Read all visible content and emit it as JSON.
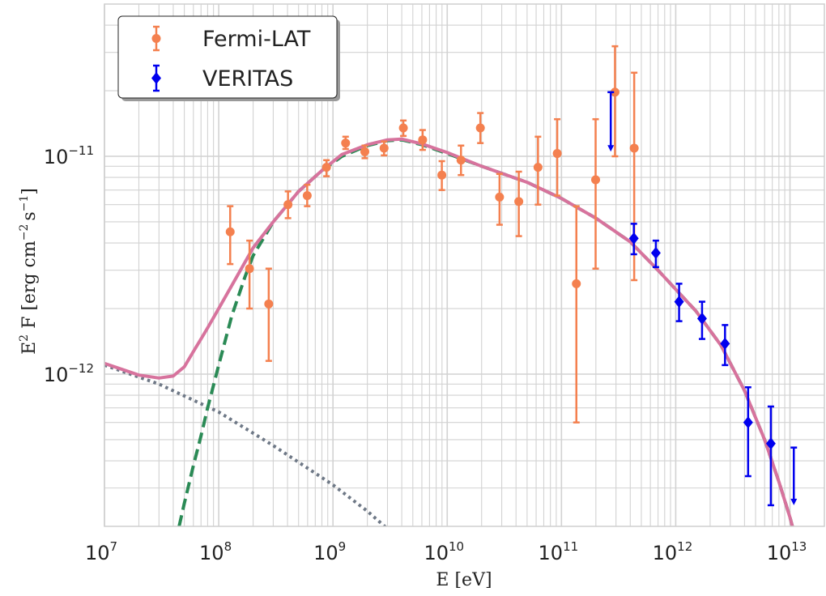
{
  "chart_data": {
    "type": "scatter",
    "title": "",
    "xlabel": "E [eV]",
    "ylabel": {
      "base": "E",
      "sup": "2",
      "rest": " F [erg cm",
      "unit_sup1": "−2",
      "mid": "s",
      "unit_sup2": "−1",
      "close": "]"
    },
    "xscale": "log",
    "yscale": "log",
    "xlim": [
      10000000.0,
      20000000000000.0
    ],
    "ylim": [
      2e-13,
      5e-11
    ],
    "grid": true,
    "legend_position": "top-left",
    "x_ticks": [
      {
        "base": "10",
        "exp": "7",
        "value": 10000000.0
      },
      {
        "base": "10",
        "exp": "8",
        "value": 100000000.0
      },
      {
        "base": "10",
        "exp": "9",
        "value": 1000000000.0
      },
      {
        "base": "10",
        "exp": "10",
        "value": 10000000000.0
      },
      {
        "base": "10",
        "exp": "11",
        "value": 100000000000.0
      },
      {
        "base": "10",
        "exp": "12",
        "value": 1000000000000.0
      },
      {
        "base": "10",
        "exp": "13",
        "value": 10000000000000.0
      }
    ],
    "y_ticks": [
      {
        "base": "10",
        "exp": "−12",
        "value": 1e-12
      },
      {
        "base": "10",
        "exp": "−11",
        "value": 1e-11
      }
    ],
    "series": [
      {
        "name": "Fermi-LAT",
        "color": "#f4804f",
        "marker": "circle",
        "points": [
          {
            "x": 126000000.0,
            "y": 4.5e-12,
            "lo": 3.2e-12,
            "hi": 5.9e-12
          },
          {
            "x": 186000000.0,
            "y": 3.05e-12,
            "lo": 2e-12,
            "hi": 4.1e-12
          },
          {
            "x": 274000000.0,
            "y": 2.1e-12,
            "lo": 1.15e-12,
            "hi": 3.05e-12
          },
          {
            "x": 404000000.0,
            "y": 6e-12,
            "lo": 5.2e-12,
            "hi": 6.9e-12
          },
          {
            "x": 595000000.0,
            "y": 6.6e-12,
            "lo": 5.9e-12,
            "hi": 7.4e-12
          },
          {
            "x": 877000000.0,
            "y": 8.9e-12,
            "lo": 8.1e-12,
            "hi": 9.6e-12
          },
          {
            "x": 1290000000.0,
            "y": 1.15e-11,
            "lo": 1.08e-11,
            "hi": 1.23e-11
          },
          {
            "x": 1900000000.0,
            "y": 1.05e-11,
            "lo": 9.8e-12,
            "hi": 1.12e-11
          },
          {
            "x": 2800000000.0,
            "y": 1.09e-11,
            "lo": 1.01e-11,
            "hi": 1.17e-11
          },
          {
            "x": 4130000000.0,
            "y": 1.35e-11,
            "lo": 1.24e-11,
            "hi": 1.46e-11
          },
          {
            "x": 6090000000.0,
            "y": 1.19e-11,
            "lo": 1.07e-11,
            "hi": 1.32e-11
          },
          {
            "x": 8970000000.0,
            "y": 8.2e-12,
            "lo": 7e-12,
            "hi": 9.5e-12
          },
          {
            "x": 13200000000.0,
            "y": 9.6e-12,
            "lo": 8.2e-12,
            "hi": 1.12e-11
          },
          {
            "x": 19500000000.0,
            "y": 1.35e-11,
            "lo": 1.15e-11,
            "hi": 1.58e-11
          },
          {
            "x": 28700000000.0,
            "y": 6.5e-12,
            "lo": 4.85e-12,
            "hi": 8.3e-12
          },
          {
            "x": 42300000000.0,
            "y": 6.2e-12,
            "lo": 4.3e-12,
            "hi": 8.5e-12
          },
          {
            "x": 62300000000.0,
            "y": 8.9e-12,
            "lo": 6e-12,
            "hi": 1.23e-11
          },
          {
            "x": 91800000000.0,
            "y": 1.03e-11,
            "lo": 6.6e-12,
            "hi": 1.48e-11
          },
          {
            "x": 135000000000.0,
            "y": 2.6e-12,
            "lo": 6e-13,
            "hi": 5.9e-12
          },
          {
            "x": 199000000000.0,
            "y": 7.8e-12,
            "lo": 3.05e-12,
            "hi": 1.48e-11
          },
          {
            "x": 294000000000.0,
            "y": 1.97e-11,
            "lo": 1e-11,
            "hi": 3.2e-11
          },
          {
            "x": 433000000000.0,
            "y": 1.09e-11,
            "lo": 2.7e-12,
            "hi": 2.42e-11
          }
        ]
      },
      {
        "name": "VERITAS",
        "color": "#0000ee",
        "marker": "diamond",
        "points": [
          {
            "x": 430000000000.0,
            "y": 4.2e-12,
            "lo": 3.55e-12,
            "hi": 4.9e-12
          },
          {
            "x": 670000000000.0,
            "y": 3.6e-12,
            "lo": 3.1e-12,
            "hi": 4.1e-12
          },
          {
            "x": 1070000000000.0,
            "y": 2.15e-12,
            "lo": 1.75e-12,
            "hi": 2.6e-12
          },
          {
            "x": 1700000000000.0,
            "y": 1.8e-12,
            "lo": 1.45e-12,
            "hi": 2.15e-12
          },
          {
            "x": 2700000000000.0,
            "y": 1.38e-12,
            "lo": 1.1e-12,
            "hi": 1.68e-12
          },
          {
            "x": 4300000000000.0,
            "y": 6e-13,
            "lo": 3.4e-13,
            "hi": 8.7e-13
          },
          {
            "x": 6800000000000.0,
            "y": 4.8e-13,
            "lo": 2.5e-13,
            "hi": 7.1e-13
          }
        ],
        "upper_limits": [
          {
            "x": 270000000000.0,
            "y": 1.97e-11,
            "to": 1.05e-11
          },
          {
            "x": 10800000000000.0,
            "y": 4.6e-13,
            "to": 2.5e-13
          }
        ]
      }
    ],
    "curves": [
      {
        "style": "dotted",
        "color": "#6e7886",
        "points": [
          [
            10000000.0,
            1.1e-12
          ],
          [
            30000000.0,
            9e-13
          ],
          [
            100000000.0,
            6.7e-13
          ],
          [
            300000000.0,
            4.7e-13
          ],
          [
            1000000000.0,
            3.1e-13
          ],
          [
            2000000000.0,
            2.35e-13
          ],
          [
            3000000000.0,
            1.95e-13
          ]
        ]
      },
      {
        "style": "dashed",
        "color": "#2a8a55",
        "points": [
          [
            45000000.0,
            2e-13
          ],
          [
            50000000.0,
            2.55e-13
          ],
          [
            60000000.0,
            3.8e-13
          ],
          [
            70000000.0,
            5.2e-13
          ],
          [
            80000000.0,
            7e-13
          ],
          [
            100000000.0,
            1.1e-12
          ],
          [
            130000000.0,
            1.85e-12
          ],
          [
            170000000.0,
            2.8e-12
          ],
          [
            200000000.0,
            3.5e-12
          ],
          [
            300000000.0,
            5e-12
          ],
          [
            500000000.0,
            6.9e-12
          ],
          [
            800000000.0,
            8.6e-12
          ],
          [
            1200000000.0,
            1e-11
          ],
          [
            2000000000.0,
            1.12e-11
          ],
          [
            3000000000.0,
            1.18e-11
          ],
          [
            4000000000.0,
            1.19e-11
          ],
          [
            6000000000.0,
            1.13e-11
          ],
          [
            10000000000.0,
            1.03e-11
          ],
          [
            20000000000.0,
            9e-12
          ],
          [
            50000000000.0,
            7.6e-12
          ],
          [
            100000000000.0,
            6.4e-12
          ],
          [
            200000000000.0,
            5.2e-12
          ],
          [
            400000000000.0,
            4.05e-12
          ],
          [
            700000000000.0,
            3e-12
          ],
          [
            1000000000000.0,
            2.45e-12
          ],
          [
            1500000000000.0,
            1.95e-12
          ],
          [
            2500000000000.0,
            1.35e-12
          ],
          [
            4000000000000.0,
            8.4e-13
          ],
          [
            6000000000000.0,
            5e-13
          ],
          [
            8000000000000.0,
            3.2e-13
          ],
          [
            10000000000000.0,
            2.2e-13
          ],
          [
            10500000000000.0,
            2e-13
          ]
        ]
      },
      {
        "style": "solid",
        "color": "#d7739d",
        "points": [
          [
            10000000.0,
            1.12e-12
          ],
          [
            20000000.0,
            9.9e-13
          ],
          [
            30000000.0,
            9.6e-13
          ],
          [
            40000000.0,
            9.8e-13
          ],
          [
            50000000.0,
            1.08e-12
          ],
          [
            60000000.0,
            1.27e-12
          ],
          [
            70000000.0,
            1.45e-12
          ],
          [
            80000000.0,
            1.63e-12
          ],
          [
            100000000.0,
            2e-12
          ],
          [
            130000000.0,
            2.55e-12
          ],
          [
            200000000.0,
            3.8e-12
          ],
          [
            300000000.0,
            5e-12
          ],
          [
            500000000.0,
            6.9e-12
          ],
          [
            800000000.0,
            8.6e-12
          ],
          [
            1200000000.0,
            1.02e-11
          ],
          [
            2000000000.0,
            1.13e-11
          ],
          [
            3000000000.0,
            1.19e-11
          ],
          [
            4000000000.0,
            1.2e-11
          ],
          [
            6000000000.0,
            1.14e-11
          ],
          [
            10000000000.0,
            1.04e-11
          ],
          [
            20000000000.0,
            9e-12
          ],
          [
            50000000000.0,
            7.6e-12
          ],
          [
            100000000000.0,
            6.4e-12
          ],
          [
            200000000000.0,
            5.2e-12
          ],
          [
            400000000000.0,
            4.05e-12
          ],
          [
            700000000000.0,
            3e-12
          ],
          [
            1000000000000.0,
            2.45e-12
          ],
          [
            1500000000000.0,
            1.95e-12
          ],
          [
            2500000000000.0,
            1.35e-12
          ],
          [
            4000000000000.0,
            8.4e-13
          ],
          [
            6000000000000.0,
            5e-13
          ],
          [
            8000000000000.0,
            3.2e-13
          ],
          [
            10000000000000.0,
            2.2e-13
          ],
          [
            10500000000000.0,
            2e-13
          ]
        ]
      }
    ]
  }
}
